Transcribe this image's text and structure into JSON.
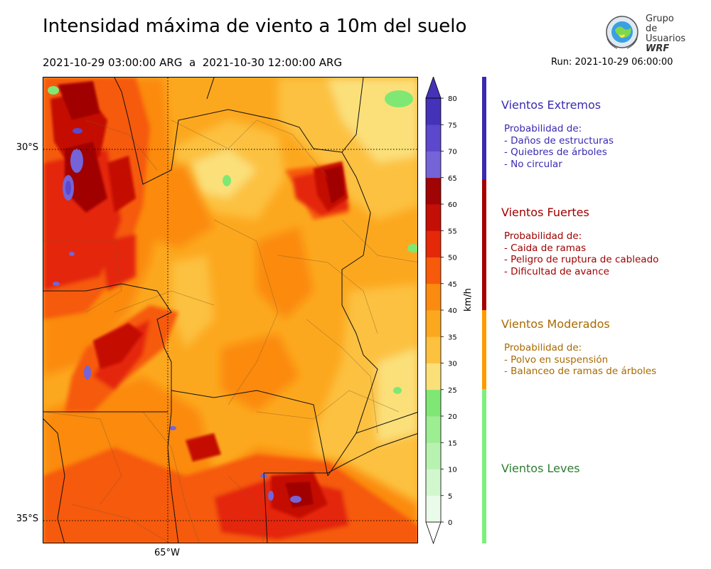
{
  "title": "Intensidad máxima de viento a 10m del suelo",
  "period": {
    "start": "2021-10-29 03:00:00 ARG",
    "separator": "a",
    "end": "2021-10-30 12:00:00 ARG"
  },
  "run": "Run: 2021-10-29 06:00:00",
  "logo": {
    "line1": "Grupo de",
    "line2": "Usuarios",
    "line3": "WRF"
  },
  "map": {
    "lat_labels": [
      "30°S",
      "35°S"
    ],
    "lon_labels": [
      "65°W"
    ],
    "grid": "dotted"
  },
  "colorbar": {
    "unit": "km/h",
    "ticks": [
      "0",
      "5",
      "10",
      "15",
      "20",
      "25",
      "30",
      "35",
      "40",
      "45",
      "50",
      "55",
      "60",
      "65",
      "70",
      "75",
      "80"
    ],
    "colors": [
      "#eafbe9",
      "#d2f7cf",
      "#b7f2b1",
      "#9ded93",
      "#7fe874",
      "#fbe07a",
      "#fcc13f",
      "#fca81f",
      "#fb8a10",
      "#f65a0a",
      "#e42808",
      "#c40f06",
      "#a10404",
      "#7464d8",
      "#5b48cc",
      "#4433b8"
    ],
    "extend": "both"
  },
  "categories": [
    {
      "title": "Vientos Extremos",
      "color": "#3a2ab0",
      "lines": [
        "Probabilidad de:",
        "- Daños de estructuras",
        "- Quiebres de árboles",
        "- No circular"
      ]
    },
    {
      "title": "Vientos Fuertes",
      "color": "#a00000",
      "lines": [
        "Probabilidad de:",
        "- Caida de ramas",
        "- Peligro de ruptura de cableado",
        "- Dificultad de avance"
      ]
    },
    {
      "title": "Vientos Moderados",
      "color": "#a86a00",
      "lines": [
        "Probabilidad de:",
        "- Polvo en suspensión",
        "- Balanceo de ramas de árboles"
      ]
    },
    {
      "title": "Vientos Leves",
      "color": "#2e7d32",
      "lines": []
    }
  ],
  "legend_bar_colors": [
    "#3a2ab0",
    "#a50000",
    "#ff9a00",
    "#7cf07a"
  ]
}
